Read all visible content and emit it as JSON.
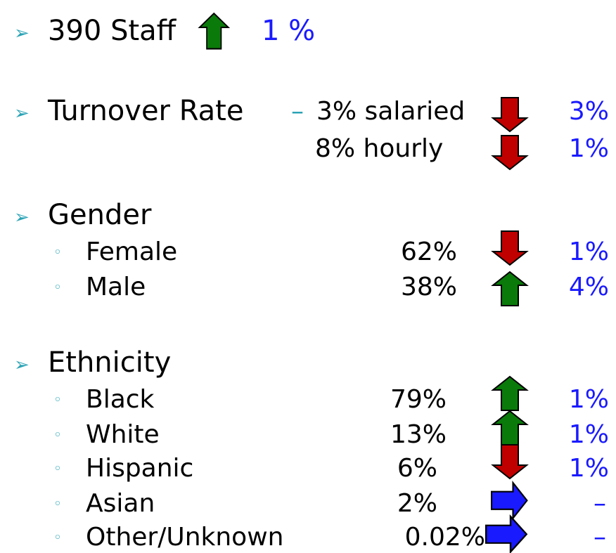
{
  "items": [
    {
      "text": "390 Staff",
      "change": "1 %"
    },
    {
      "label": "Turnover Rate",
      "separator": "–",
      "rows": [
        {
          "text": "3% salaried",
          "change": "3%"
        },
        {
          "text": "8% hourly",
          "change": "1%"
        }
      ]
    },
    {
      "label": "Gender",
      "rows": [
        {
          "name": "Female",
          "value": "62%",
          "change": "1%"
        },
        {
          "name": "Male",
          "value": "38%",
          "change": "4%"
        }
      ]
    },
    {
      "label": "Ethnicity",
      "rows": [
        {
          "name": "Black",
          "value": "79%",
          "change": "1%"
        },
        {
          "name": "White",
          "value": "13%",
          "change": "1%"
        },
        {
          "name": "Hispanic",
          "value": "6%",
          "change": "1%"
        },
        {
          "name": "Asian",
          "value": "2%",
          "change": "–"
        },
        {
          "name": "Other/Unknown",
          "value": "0.02%",
          "change": "–"
        }
      ]
    }
  ]
}
